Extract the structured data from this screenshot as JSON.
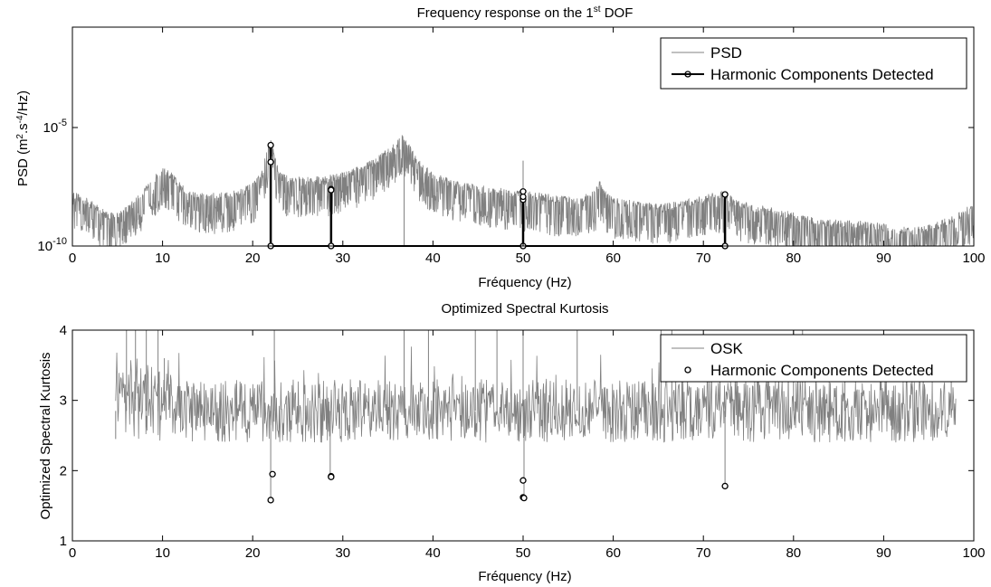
{
  "chart_data": [
    {
      "type": "line",
      "title": {
        "prefix": "Frequency response on the 1",
        "sup": "st",
        "suffix": " DOF"
      },
      "xlabel": "Fréquency (Hz)",
      "ylabel": {
        "prefix": "PSD (m",
        "sup1": "2",
        "mid": ".s",
        "sup2": "-4",
        "suffix": "/Hz)"
      },
      "xlim": [
        0,
        100
      ],
      "ylim": [
        1e-10,
        1e-05
      ],
      "yscale": "log",
      "xticks": [
        "0",
        "10",
        "20",
        "30",
        "40",
        "50",
        "60",
        "70",
        "80",
        "90",
        "100"
      ],
      "yticks": [
        {
          "base": "10",
          "exp": "-10",
          "value": 1e-10
        },
        {
          "base": "10",
          "exp": "-5",
          "value": 1e-05
        }
      ],
      "grid": false,
      "legend_position": "top-right",
      "series": [
        {
          "name": "PSD",
          "color": "#808080",
          "envelope_x": [
            0,
            2,
            4,
            6,
            7,
            8,
            9,
            10,
            11,
            12,
            14,
            16,
            18,
            20,
            21,
            21.5,
            22,
            22.5,
            23,
            24,
            26,
            28,
            30,
            32,
            34,
            35,
            36,
            36.5,
            37,
            37.5,
            38,
            39,
            40,
            42,
            44,
            46,
            48,
            50,
            52,
            54,
            56,
            58,
            58.5,
            59,
            60,
            62,
            64,
            66,
            68,
            70,
            72,
            74,
            76,
            78,
            80,
            82,
            84,
            86,
            88,
            90,
            92,
            94,
            96,
            98,
            100
          ],
          "envelope_y": [
            1e-08,
            4e-09,
            1.2e-09,
            2e-09,
            5e-09,
            1.5e-08,
            4e-08,
            1e-07,
            6e-08,
            2e-08,
            8e-09,
            8e-09,
            1e-08,
            2e-08,
            6e-08,
            4e-07,
            1.5e-06,
            2.5e-07,
            6e-08,
            4e-08,
            4e-08,
            4e-08,
            6e-08,
            1.2e-07,
            3e-07,
            6e-07,
            1.3e-06,
            2.3e-06,
            1.6e-06,
            8e-07,
            3e-07,
            1.2e-07,
            6e-08,
            3e-08,
            2e-08,
            1.5e-08,
            1.2e-08,
            1e-08,
            8e-09,
            6e-09,
            6e-09,
            1e-08,
            3e-08,
            1e-08,
            5e-09,
            4e-09,
            3e-09,
            3e-09,
            4e-09,
            6e-09,
            1e-08,
            4e-09,
            2.5e-09,
            1.8e-09,
            1.2e-09,
            8e-10,
            6e-10,
            6e-10,
            5e-10,
            4e-10,
            3e-10,
            3e-10,
            5e-10,
            1e-09,
            3e-09
          ]
        },
        {
          "name": "Harmonic Components Detected",
          "color": "#000000",
          "marker": "o",
          "lines": [
            {
              "x": 22,
              "y": [
                1e-10,
                3.5e-07,
                1.8e-06
              ]
            },
            {
              "x": 28.7,
              "y": [
                1e-10,
                2.5e-08,
                2.3e-08
              ]
            },
            {
              "x": 50,
              "y": [
                1e-10,
                9e-09,
                1.2e-08,
                2e-08
              ]
            },
            {
              "x": 72.4,
              "y": [
                1e-10,
                1.5e-08
              ]
            }
          ],
          "baseline": {
            "x": [
              22,
              72.4
            ],
            "y": 1e-10
          }
        }
      ]
    },
    {
      "type": "line",
      "title": "Optimized Spectral Kurtosis",
      "xlabel": "Fréquency (Hz)",
      "ylabel": "Optimized Spectral Kurtosis",
      "xlim": [
        0,
        100
      ],
      "ylim": [
        1,
        4
      ],
      "xticks": [
        "0",
        "10",
        "20",
        "30",
        "40",
        "50",
        "60",
        "70",
        "80",
        "90",
        "100"
      ],
      "yticks": [
        "1",
        "2",
        "3",
        "4"
      ],
      "grid": false,
      "legend_position": "top-right",
      "series": [
        {
          "name": "OSK",
          "color": "#808080",
          "start_x": 4.8,
          "end_x": 98,
          "baseline_mean": 2.85,
          "spikes": [
            {
              "x": 4.8,
              "y": 2.45
            },
            {
              "x": 6.0,
              "y": 4
            },
            {
              "x": 7.0,
              "y": 4
            },
            {
              "x": 8.2,
              "y": 4
            },
            {
              "x": 9.5,
              "y": 4
            },
            {
              "x": 10.2,
              "y": 3.6
            },
            {
              "x": 22.0,
              "y": 1.6
            },
            {
              "x": 22.4,
              "y": 4
            },
            {
              "x": 28.6,
              "y": 1.92
            },
            {
              "x": 36.8,
              "y": 4
            },
            {
              "x": 39.5,
              "y": 4
            },
            {
              "x": 44.7,
              "y": 4
            },
            {
              "x": 47.1,
              "y": 4
            },
            {
              "x": 50.0,
              "y": 4
            },
            {
              "x": 50.1,
              "y": 1.6
            },
            {
              "x": 56.0,
              "y": 4
            },
            {
              "x": 65.3,
              "y": 4
            },
            {
              "x": 66.5,
              "y": 4
            },
            {
              "x": 72.4,
              "y": 1.8
            },
            {
              "x": 80.0,
              "y": 4
            },
            {
              "x": 81.0,
              "y": 4
            },
            {
              "x": 85.7,
              "y": 3.7
            },
            {
              "x": 97.5,
              "y": 3.4
            }
          ]
        },
        {
          "name": "Harmonic Components Detected",
          "color": "#000000",
          "marker": "o",
          "points": [
            {
              "x": 22.0,
              "y": 1.58
            },
            {
              "x": 22.2,
              "y": 1.95
            },
            {
              "x": 28.7,
              "y": 1.92
            },
            {
              "x": 28.7,
              "y": 1.91
            },
            {
              "x": 50.0,
              "y": 1.86
            },
            {
              "x": 50.0,
              "y": 1.62
            },
            {
              "x": 50.1,
              "y": 1.61
            },
            {
              "x": 72.4,
              "y": 1.78
            }
          ]
        }
      ]
    }
  ]
}
